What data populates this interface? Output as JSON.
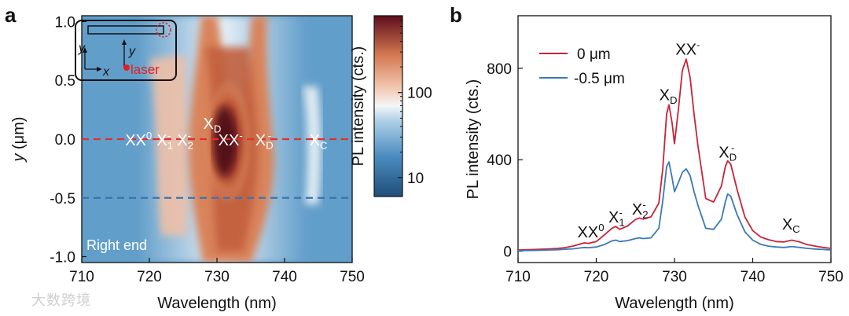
{
  "chart_data": [
    {
      "panel": "a",
      "type": "heatmap",
      "xlabel": "Wavelength (nm)",
      "ylabel": "y (μm)",
      "ylabel_italic_part": "y",
      "ylabel_rest": " (μm)",
      "xlim": [
        710,
        750
      ],
      "ylim": [
        -1.05,
        1.05
      ],
      "xticks": [
        710,
        720,
        730,
        740,
        750
      ],
      "xtick_labels": [
        "710",
        "720",
        "730",
        "740",
        "750"
      ],
      "yticks": [
        -1.0,
        -0.5,
        0.0,
        0.5,
        1.0
      ],
      "ytick_labels": [
        "-1.0",
        "-0.5",
        "0.0",
        "0.5",
        "1.0"
      ],
      "colorbar": {
        "label": "PL intensity (cts.)",
        "scale": "log",
        "ticks": [
          10,
          100
        ],
        "tick_labels": [
          "10",
          "100"
        ],
        "range": [
          6,
          800
        ]
      },
      "intensity_peaks_nm": [
        718.5,
        722.5,
        725.5,
        729.2,
        731.5,
        736.8,
        745.0
      ],
      "dashed_lines": [
        {
          "y": 0.0,
          "color": "#e03030",
          "label": "0 μm"
        },
        {
          "y": -0.5,
          "color": "#3a74b0",
          "label": "-0.5 μm"
        }
      ],
      "peak_labels": [
        {
          "base": "XX",
          "sup": "0",
          "sub": "",
          "x": 718.4,
          "y": 0.0
        },
        {
          "base": "X",
          "sup": "-",
          "sub": "1",
          "x": 722.3,
          "y": 0.0
        },
        {
          "base": "X",
          "sup": "-",
          "sub": "2",
          "x": 725.3,
          "y": 0.0
        },
        {
          "base": "XX",
          "sup": "-",
          "sub": "",
          "x": 732.0,
          "y": 0.0
        },
        {
          "base": "X",
          "sup": "-",
          "sub": "D",
          "x": 737.0,
          "y": 0.0
        },
        {
          "base": "X",
          "sup": "",
          "sub": "D",
          "x": 729.3,
          "y": 0.14
        },
        {
          "base": "X",
          "sup": "",
          "sub": "C",
          "x": 745.0,
          "y": 0.0
        }
      ],
      "annotation": "Right end",
      "inset": {
        "laser_label": "laser",
        "axis_x_label": "x",
        "axis_y_label": "y",
        "position_axis_label": "y"
      }
    },
    {
      "panel": "b",
      "type": "line",
      "xlabel": "Wavelength (nm)",
      "ylabel": "PL intensity (cts.)",
      "xlim": [
        710,
        750
      ],
      "ylim": [
        -50,
        1030
      ],
      "xticks": [
        710,
        720,
        730,
        740,
        750
      ],
      "xtick_labels": [
        "710",
        "720",
        "730",
        "740",
        "750"
      ],
      "yticks": [
        0,
        400,
        800
      ],
      "ytick_labels": [
        "0",
        "400",
        "800"
      ],
      "x": [
        710,
        712,
        714,
        715,
        716,
        717,
        718,
        718.5,
        719,
        720,
        721,
        722,
        722.5,
        723,
        724,
        725,
        725.5,
        726,
        727,
        728,
        728.5,
        729,
        729.3,
        729.7,
        730,
        730.5,
        731,
        731.5,
        732,
        732.5,
        733,
        734,
        735,
        736,
        736.5,
        736.8,
        737.2,
        738,
        739,
        740,
        741,
        742,
        743,
        744,
        745,
        746,
        747,
        748,
        749,
        750
      ],
      "series": [
        {
          "name": "0 μm",
          "color": "#c8233a",
          "values": [
            5,
            7,
            10,
            12,
            15,
            22,
            32,
            36,
            34,
            42,
            70,
            100,
            108,
            95,
            110,
            138,
            145,
            140,
            150,
            210,
            360,
            600,
            640,
            560,
            470,
            620,
            790,
            840,
            760,
            600,
            460,
            230,
            215,
            285,
            370,
            395,
            380,
            270,
            150,
            90,
            62,
            50,
            42,
            40,
            48,
            40,
            28,
            22,
            16,
            12
          ]
        },
        {
          "name": "-0.5 μm",
          "color": "#3a7ab5",
          "values": [
            2,
            3,
            5,
            6,
            8,
            10,
            14,
            16,
            15,
            18,
            28,
            45,
            48,
            42,
            46,
            55,
            58,
            55,
            58,
            100,
            220,
            370,
            390,
            320,
            260,
            300,
            345,
            360,
            330,
            260,
            200,
            100,
            95,
            140,
            215,
            250,
            240,
            160,
            85,
            48,
            30,
            22,
            18,
            16,
            20,
            16,
            12,
            9,
            7,
            5
          ]
        }
      ],
      "peak_labels": [
        {
          "base": "XX",
          "sup": "0",
          "sub": "",
          "x": 719.3,
          "y": 60
        },
        {
          "base": "X",
          "sup": "-",
          "sub": "1",
          "x": 722.6,
          "y": 125
        },
        {
          "base": "X",
          "sup": "-",
          "sub": "2",
          "x": 725.6,
          "y": 160
        },
        {
          "base": "X",
          "sup": "",
          "sub": "D",
          "x": 729.2,
          "y": 660
        },
        {
          "base": "XX",
          "sup": "-",
          "sub": "",
          "x": 731.7,
          "y": 860
        },
        {
          "base": "X",
          "sup": "-",
          "sub": "D",
          "x": 736.8,
          "y": 410
        },
        {
          "base": "X",
          "sup": "",
          "sub": "C",
          "x": 744.9,
          "y": 95
        }
      ],
      "legend_position": "top-left"
    }
  ],
  "watermark": "大数跨境"
}
